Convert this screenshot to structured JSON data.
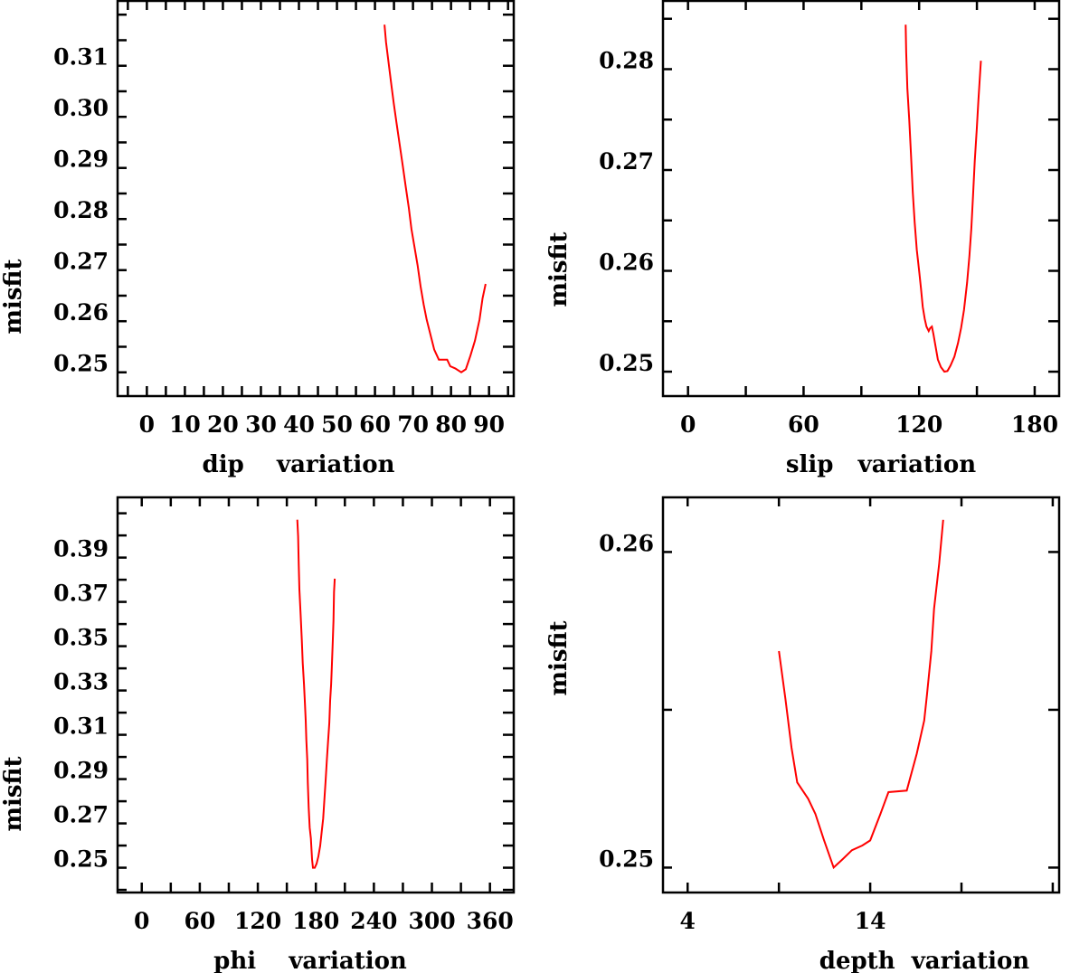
{
  "chart_data": [
    {
      "type": "line",
      "xlabel": "dip    variation",
      "ylabel": "misfit",
      "xlim": [
        -7.7,
        96.5
      ],
      "ylim": [
        0.24535,
        0.32287
      ],
      "xticks": [
        0,
        10,
        20,
        30,
        40,
        50,
        60,
        70,
        80,
        90
      ],
      "xtick_labels": [
        "0",
        "10",
        "20",
        "30",
        "40",
        "50",
        "60",
        "70",
        "80",
        "90"
      ],
      "xminor_step": 5,
      "yticks": [
        0.25,
        0.26,
        0.27,
        0.28,
        0.29,
        0.3,
        0.31
      ],
      "ytick_labels": [
        "0.25",
        "0.26",
        "0.27",
        "0.28",
        "0.29",
        "0.30",
        "0.31"
      ],
      "yminor_step": 0.005,
      "grid": false,
      "color": "#ff0000",
      "x": [
        62.5,
        62.9,
        63.5,
        64.2,
        64.9,
        65.7,
        66.5,
        67.3,
        68.1,
        68.9,
        69.6,
        70.4,
        71.2,
        72.0,
        72.8,
        73.6,
        74.6,
        75.6,
        76.8,
        79.0,
        79.8,
        81.1,
        82.7,
        83.9,
        85.1,
        86.3,
        87.5,
        88.3,
        89.1
      ],
      "y": [
        0.31803,
        0.3146,
        0.31106,
        0.30694,
        0.30281,
        0.29867,
        0.29455,
        0.29042,
        0.28628,
        0.28216,
        0.27804,
        0.2745,
        0.27095,
        0.26681,
        0.26327,
        0.26034,
        0.25738,
        0.25443,
        0.25248,
        0.25248,
        0.25119,
        0.25077,
        0.25,
        0.2506,
        0.25326,
        0.25619,
        0.26034,
        0.26446,
        0.26729
      ]
    },
    {
      "type": "line",
      "xlabel": "slip   variation",
      "ylabel": "misfit",
      "xlim": [
        -13,
        192.7
      ],
      "ylim": [
        0.24758,
        0.28686
      ],
      "xticks": [
        0,
        60,
        120,
        180
      ],
      "xtick_labels": [
        "0",
        "60",
        "120",
        "180"
      ],
      "xminor_step": 30,
      "yticks": [
        0.25,
        0.26,
        0.27,
        0.28
      ],
      "ytick_labels": [
        "0.25",
        "0.26",
        "0.27",
        "0.28"
      ],
      "yminor_step": 0.005,
      "grid": false,
      "color": "#ff0000",
      "x": [
        113.0,
        113.3,
        113.9,
        114.9,
        115.8,
        116.7,
        117.7,
        118.8,
        120.0,
        121.0,
        121.9,
        122.9,
        123.8,
        125.0,
        125.8,
        126.6,
        127.4,
        128.5,
        129.7,
        131.3,
        133.1,
        134.7,
        136.3,
        138.3,
        140.2,
        141.8,
        143.3,
        144.9,
        146.1,
        147.1,
        148.0,
        148.9,
        149.9,
        150.8,
        151.8,
        152.1
      ],
      "y": [
        0.28441,
        0.28164,
        0.27806,
        0.27492,
        0.27134,
        0.26776,
        0.26477,
        0.26209,
        0.26,
        0.25821,
        0.25642,
        0.25523,
        0.25448,
        0.25403,
        0.25433,
        0.25448,
        0.25373,
        0.25254,
        0.2512,
        0.25045,
        0.25,
        0.25006,
        0.2506,
        0.25149,
        0.25284,
        0.25433,
        0.25612,
        0.25881,
        0.26149,
        0.26418,
        0.26746,
        0.27089,
        0.27403,
        0.27701,
        0.27999,
        0.28083
      ]
    },
    {
      "type": "line",
      "xlabel": "phi    variation",
      "ylabel": "misfit",
      "xlim": [
        -25,
        384.6
      ],
      "ylim": [
        0.2388,
        0.4176
      ],
      "xticks": [
        0,
        60,
        120,
        180,
        240,
        300,
        360
      ],
      "xtick_labels": [
        "0",
        "60",
        "120",
        "180",
        "240",
        "300",
        "360"
      ],
      "xminor_step": 30,
      "yticks": [
        0.25,
        0.27,
        0.29,
        0.31,
        0.33,
        0.35,
        0.37,
        0.39
      ],
      "ytick_labels": [
        "0.25",
        "0.27",
        "0.29",
        "0.31",
        "0.33",
        "0.35",
        "0.37",
        "0.39"
      ],
      "yminor_step": 0.01,
      "grid": false,
      "color": "#ff0000",
      "x": [
        160.8,
        161.7,
        162.3,
        163.0,
        164.3,
        165.5,
        166.4,
        167.7,
        168.6,
        169.5,
        170.2,
        171.1,
        171.7,
        172.6,
        173.6,
        174.8,
        176.1,
        177.0,
        178.9,
        180.7,
        182.6,
        184.5,
        186.3,
        187.6,
        188.9,
        190.1,
        191.4,
        192.6,
        193.9,
        194.8,
        195.8,
        196.4,
        197.3,
        198.2,
        198.8,
        199.5
      ],
      "y": [
        0.4071,
        0.3996,
        0.3866,
        0.3757,
        0.3641,
        0.3526,
        0.3424,
        0.3328,
        0.3253,
        0.3165,
        0.3076,
        0.2988,
        0.2885,
        0.277,
        0.2681,
        0.2633,
        0.2538,
        0.25,
        0.25,
        0.2518,
        0.2551,
        0.2599,
        0.2674,
        0.2722,
        0.2811,
        0.2892,
        0.2988,
        0.3069,
        0.3154,
        0.3253,
        0.3328,
        0.3399,
        0.3498,
        0.3614,
        0.3744,
        0.3805
      ]
    },
    {
      "type": "line",
      "xlabel": "depth  variation",
      "ylabel": "misfit",
      "xlim": [
        2.65,
        24.35
      ],
      "ylim": [
        0.24921,
        0.26176
      ],
      "xticks": [
        4,
        14
      ],
      "xtick_labels": [
        "4",
        "14"
      ],
      "xminor_step": 5,
      "yticks": [
        0.25,
        0.26
      ],
      "ytick_labels": [
        "0.25",
        "0.26"
      ],
      "yminor_step": 0.005,
      "grid": false,
      "color": "#ff0000",
      "x": [
        9.0,
        9.36,
        9.69,
        10.0,
        10.6,
        11.0,
        11.46,
        12.0,
        12.5,
        13.0,
        13.57,
        14.0,
        14.56,
        15.0,
        16.0,
        16.55,
        16.96,
        17.1,
        17.35,
        17.5,
        17.78,
        18.0
      ],
      "y": [
        0.25686,
        0.25534,
        0.2538,
        0.2527,
        0.25218,
        0.2517,
        0.25089,
        0.25,
        0.25027,
        0.25055,
        0.2507,
        0.25086,
        0.2517,
        0.25239,
        0.25244,
        0.25361,
        0.25466,
        0.25543,
        0.25686,
        0.2582,
        0.25964,
        0.26102
      ]
    }
  ]
}
